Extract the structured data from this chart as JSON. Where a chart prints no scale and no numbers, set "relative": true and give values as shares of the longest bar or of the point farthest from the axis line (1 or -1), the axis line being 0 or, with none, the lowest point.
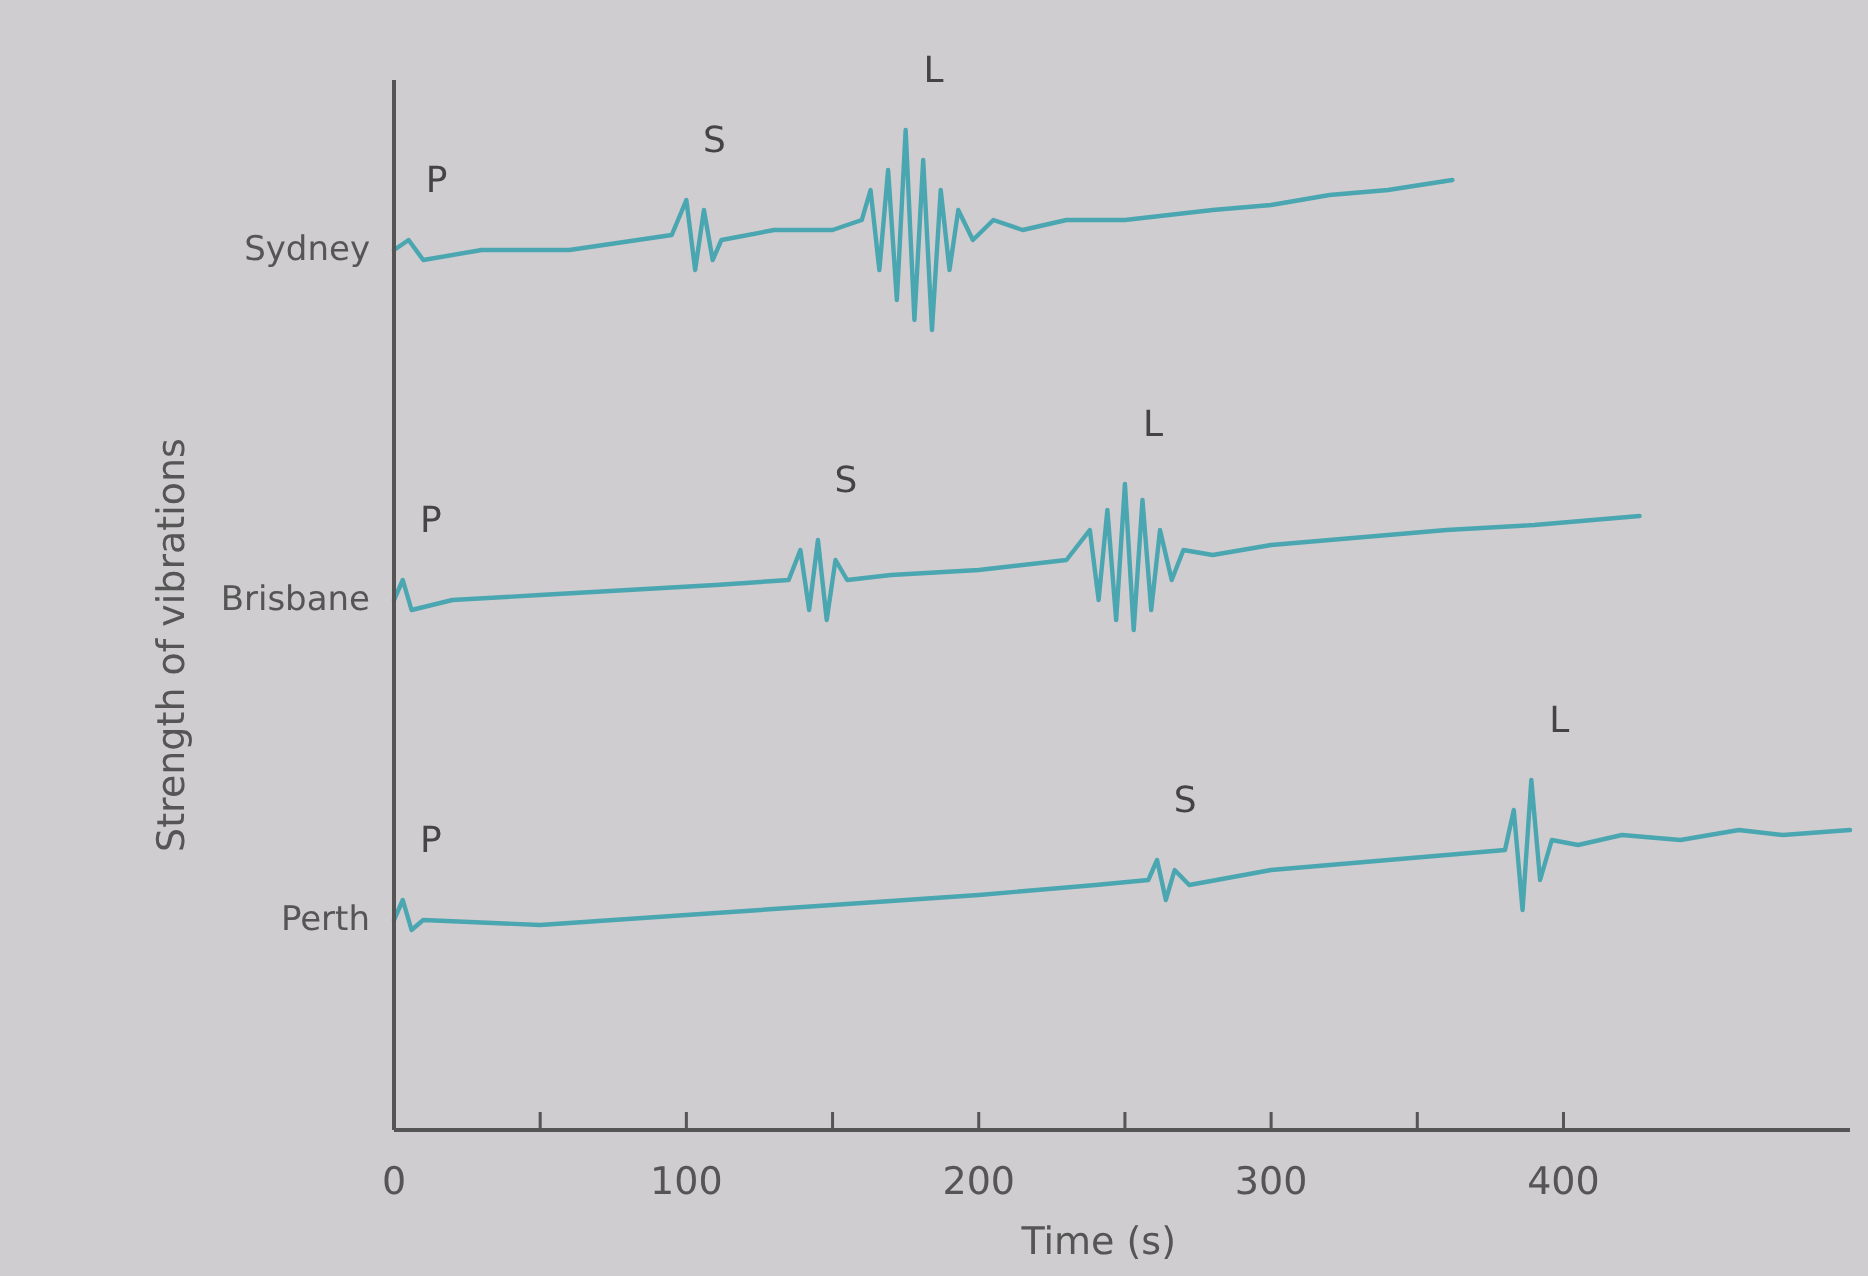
{
  "chart_data": {
    "type": "line",
    "relative": true,
    "xlabel": "Time (s)",
    "ylabel": "Strength of vibrations",
    "xlim": [
      0,
      498
    ],
    "xticks": [
      0,
      {
        "value": 50,
        "label": null
      },
      100,
      {
        "value": 150,
        "label": null
      },
      200,
      {
        "value": 250,
        "label": null
      },
      300,
      {
        "value": 350,
        "label": null
      },
      400
    ],
    "legend": false,
    "grid": false,
    "series": [
      {
        "name": "Sydney",
        "color": "#4aa6b0",
        "x": [
          0,
          5,
          10,
          30,
          60,
          95,
          100,
          103,
          106,
          109,
          112,
          130,
          150,
          160,
          163,
          166,
          169,
          172,
          175,
          178,
          181,
          184,
          187,
          190,
          193,
          198,
          205,
          215,
          230,
          250,
          280,
          300,
          320,
          340,
          362
        ],
        "values": [
          0.88,
          0.89,
          0.87,
          0.88,
          0.88,
          0.895,
          0.93,
          0.86,
          0.92,
          0.87,
          0.89,
          0.9,
          0.9,
          0.91,
          0.94,
          0.86,
          0.96,
          0.83,
          1.0,
          0.81,
          0.97,
          0.8,
          0.94,
          0.86,
          0.92,
          0.89,
          0.91,
          0.9,
          0.91,
          0.91,
          0.92,
          0.925,
          0.935,
          0.94,
          0.95
        ]
      },
      {
        "name": "Brisbane",
        "color": "#4aa6b0",
        "x": [
          0,
          3,
          6,
          20,
          50,
          80,
          110,
          135,
          139,
          142,
          145,
          148,
          151,
          155,
          170,
          200,
          230,
          238,
          241,
          244,
          247,
          250,
          253,
          256,
          259,
          262,
          266,
          270,
          280,
          300,
          320,
          340,
          360,
          390,
          426
        ],
        "values": [
          0.53,
          0.55,
          0.52,
          0.53,
          0.535,
          0.54,
          0.545,
          0.55,
          0.58,
          0.52,
          0.59,
          0.51,
          0.57,
          0.55,
          0.555,
          0.56,
          0.57,
          0.6,
          0.53,
          0.62,
          0.51,
          0.646,
          0.5,
          0.63,
          0.52,
          0.6,
          0.55,
          0.58,
          0.575,
          0.585,
          0.59,
          0.595,
          0.6,
          0.605,
          0.614
        ]
      },
      {
        "name": "Perth",
        "color": "#4aa6b0",
        "x": [
          0,
          3,
          6,
          10,
          50,
          100,
          150,
          200,
          240,
          258,
          261,
          264,
          267,
          272,
          300,
          340,
          380,
          383,
          386,
          389,
          392,
          396,
          405,
          420,
          440,
          460,
          475,
          498
        ],
        "values": [
          0.21,
          0.23,
          0.2,
          0.21,
          0.205,
          0.215,
          0.225,
          0.235,
          0.245,
          0.25,
          0.27,
          0.23,
          0.26,
          0.245,
          0.26,
          0.27,
          0.28,
          0.32,
          0.22,
          0.35,
          0.25,
          0.29,
          0.285,
          0.295,
          0.29,
          0.3,
          0.295,
          0.3
        ]
      }
    ],
    "annotations": [
      {
        "text": "P",
        "x": 5,
        "y": 0.89
      },
      {
        "text": "S",
        "x": 100,
        "y": 0.93
      },
      {
        "text": "L",
        "x": 175,
        "y": 1.0
      },
      {
        "text": "P",
        "x": 3,
        "y": 0.55
      },
      {
        "text": "S",
        "x": 145,
        "y": 0.59
      },
      {
        "text": "L",
        "x": 250,
        "y": 0.646
      },
      {
        "text": "P",
        "x": 3,
        "y": 0.23
      },
      {
        "text": "S",
        "x": 261,
        "y": 0.27
      },
      {
        "text": "L",
        "x": 389,
        "y": 0.35
      }
    ]
  }
}
